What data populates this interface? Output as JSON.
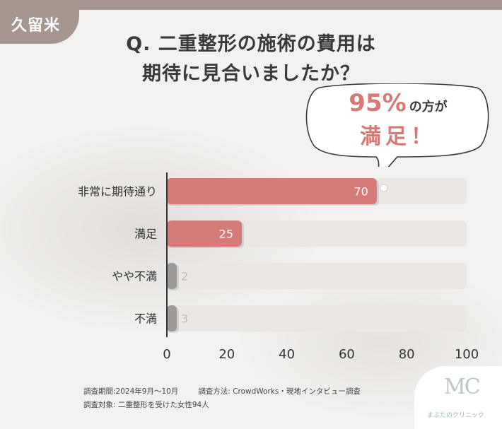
{
  "tag": "久留米",
  "title": {
    "line1": "Q. 二重整形の施術の費用は",
    "line2": "期待に見合いましたか？"
  },
  "callout": {
    "percent": "95%",
    "suffix": "の方が",
    "line2": "満足！"
  },
  "chart_data": {
    "type": "bar",
    "orientation": "horizontal",
    "categories": [
      "非常に期待通り",
      "満足",
      "やや不満",
      "不満"
    ],
    "values": [
      70,
      25,
      2,
      3
    ],
    "xlim": [
      0,
      100
    ],
    "x_ticks": [
      "0",
      "20",
      "40",
      "60",
      "80",
      "100"
    ],
    "colors": {
      "positive": "#d47b78",
      "negative": "#9a9a9a",
      "track": "#ebe7e5"
    }
  },
  "footnote": {
    "period": "調査期間:2024年9月〜10月",
    "method": "調査方法: CrowdWorks・現地インタビュー調査",
    "subject": "調査対象: 二重整形を受けた女性94人"
  },
  "logo": {
    "mark": "MC",
    "name": "まぶたのクリニック"
  }
}
